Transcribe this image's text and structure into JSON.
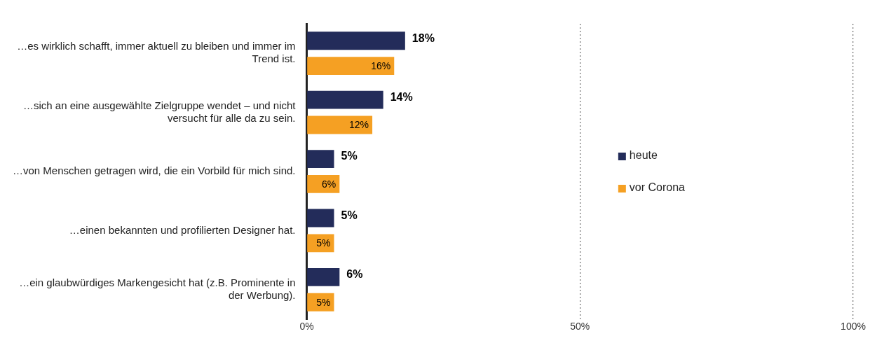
{
  "chart_data": {
    "type": "bar",
    "orientation": "horizontal",
    "categories": [
      "…es wirklich schafft, immer aktuell zu bleiben und immer im Trend ist.",
      "…sich an eine ausgewählte Zielgruppe wendet – und nicht versucht für alle da zu sein.",
      "…von Menschen getragen wird, die ein Vorbild für mich sind.",
      "…einen bekannten und profilierten Designer hat.",
      "…ein glaubwürdiges Markengesicht hat (z.B. Prominente in der Werbung)."
    ],
    "series": [
      {
        "name": "heute",
        "color": "#232c5a",
        "values": [
          18,
          14,
          5,
          5,
          6
        ],
        "value_labels": [
          "18%",
          "14%",
          "5%",
          "5%",
          "6%"
        ]
      },
      {
        "name": "vor Corona",
        "color": "#f5a023",
        "values": [
          16,
          12,
          6,
          5,
          5
        ],
        "value_labels": [
          "16%",
          "12%",
          "6%",
          "5%",
          "5%"
        ]
      }
    ],
    "xlim": [
      0,
      100
    ],
    "xticks": [
      {
        "value": 0,
        "label": "0%"
      },
      {
        "value": 50,
        "label": "50%"
      },
      {
        "value": 100,
        "label": "100%"
      }
    ],
    "grid": "x",
    "legend": "right"
  }
}
